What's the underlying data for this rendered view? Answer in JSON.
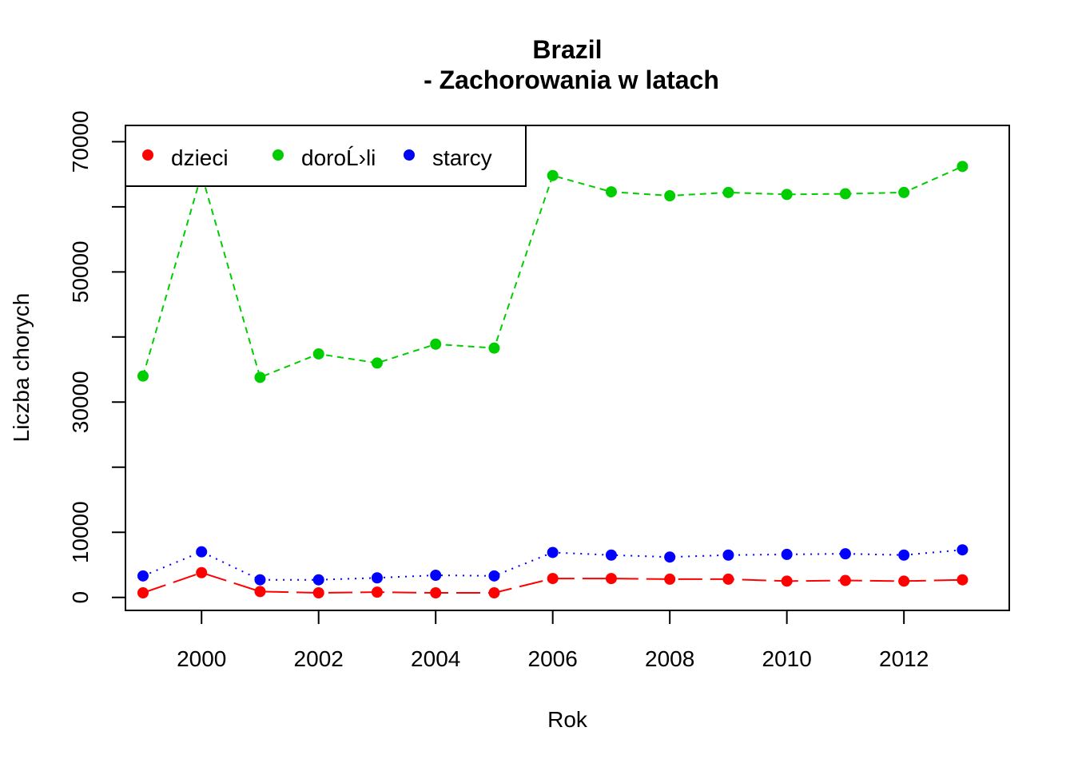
{
  "chart_data": {
    "type": "line",
    "title": "Brazil",
    "subtitle": "- Zachorowania w latach",
    "xlabel": "Rok",
    "ylabel": "Liczba chorych",
    "x": [
      1999,
      2000,
      2001,
      2002,
      2003,
      2004,
      2005,
      2006,
      2007,
      2008,
      2009,
      2010,
      2011,
      2012,
      2013
    ],
    "xlim": [
      1998.7,
      2013.8
    ],
    "ylim": [
      -2000,
      72500
    ],
    "x_ticks": [
      "2000",
      "2002",
      "2004",
      "2006",
      "2008",
      "2010",
      "2012"
    ],
    "y_ticks": [
      "0",
      "10000",
      "30000",
      "50000",
      "70000"
    ],
    "y_tick_values": [
      0,
      10000,
      20000,
      30000,
      40000,
      50000,
      60000,
      70000
    ],
    "legend": {
      "placement": "top-left",
      "columns": 3
    },
    "series": [
      {
        "name": "dzieci",
        "color": "#ff0000",
        "line_style": "long-dash",
        "values": [
          700,
          3800,
          900,
          700,
          800,
          700,
          700,
          2900,
          2900,
          2800,
          2800,
          2500,
          2600,
          2500,
          2700
        ]
      },
      {
        "name": "doroĹ›li",
        "color": "#00cd00",
        "line_style": "dashed",
        "values": [
          34000,
          65000,
          33800,
          37400,
          36000,
          38900,
          38300,
          64800,
          62300,
          61700,
          62200,
          61900,
          62000,
          62200,
          66200
        ]
      },
      {
        "name": "starcy",
        "color": "#0000ff",
        "line_style": "dotted",
        "values": [
          3300,
          7000,
          2700,
          2700,
          3000,
          3400,
          3300,
          6900,
          6500,
          6200,
          6500,
          6600,
          6700,
          6500,
          7300
        ]
      }
    ]
  }
}
